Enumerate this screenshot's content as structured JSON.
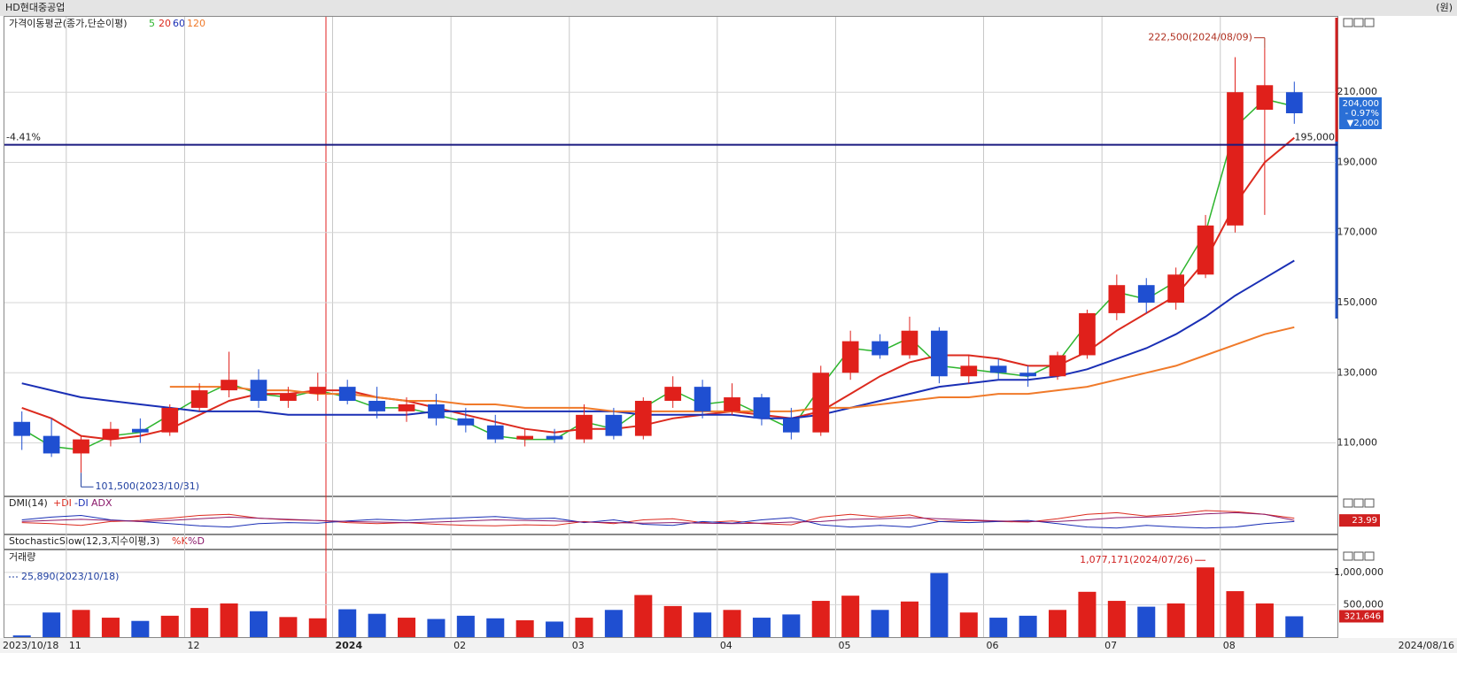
{
  "header": {
    "title": "HD현대중공업",
    "unit": "(원)"
  },
  "chart_data": [
    {
      "type": "candlestick",
      "title": "가격이동평균(종가,단순이평)",
      "categories": [
        "2023/10/18",
        null,
        "11",
        null,
        null,
        null,
        "12",
        null,
        null,
        null,
        null,
        "2024",
        null,
        null,
        null,
        "02",
        null,
        null,
        null,
        "03",
        null,
        null,
        null,
        null,
        "04",
        null,
        null,
        null,
        "05",
        null,
        null,
        null,
        null,
        "06",
        null,
        null,
        null,
        "07",
        null,
        null,
        null,
        "08",
        null,
        "2024/08/16"
      ],
      "open": [
        116000,
        112000,
        107000,
        111000,
        114000,
        113000,
        120000,
        125000,
        128000,
        122000,
        124000,
        126000,
        122000,
        119000,
        121000,
        117000,
        115000,
        111000,
        112000,
        111000,
        118000,
        112000,
        122000,
        126000,
        119000,
        123000,
        117000,
        113000,
        130000,
        139000,
        135000,
        142000,
        129000,
        132000,
        130000,
        129000,
        135000,
        147000,
        155000,
        150000,
        158000,
        172000,
        205000,
        210000
      ],
      "high": [
        119000,
        117000,
        112000,
        116000,
        117000,
        121000,
        127000,
        136000,
        131000,
        126000,
        130000,
        128000,
        126000,
        123000,
        124000,
        120000,
        118000,
        114000,
        114000,
        121000,
        120000,
        123000,
        129000,
        128000,
        127000,
        124000,
        120000,
        132000,
        142000,
        141000,
        146000,
        143000,
        135000,
        134000,
        132000,
        136000,
        148000,
        158000,
        157000,
        160000,
        175000,
        220000,
        222500,
        213000
      ],
      "low": [
        108000,
        106000,
        101500,
        109000,
        110000,
        112000,
        119000,
        123000,
        120000,
        120000,
        122000,
        121000,
        117000,
        116000,
        115000,
        113000,
        110000,
        109000,
        110000,
        110000,
        111000,
        111000,
        120000,
        117000,
        118000,
        115000,
        111000,
        112000,
        128000,
        134000,
        134000,
        127000,
        127000,
        128000,
        126000,
        128000,
        134000,
        145000,
        147000,
        148000,
        157000,
        170000,
        175000,
        201000
      ],
      "close": [
        112000,
        107000,
        111000,
        114000,
        113000,
        120000,
        125000,
        128000,
        122000,
        124000,
        126000,
        122000,
        119000,
        121000,
        117000,
        115000,
        111000,
        112000,
        111000,
        118000,
        112000,
        122000,
        126000,
        119000,
        123000,
        117000,
        113000,
        130000,
        139000,
        135000,
        142000,
        129000,
        132000,
        130000,
        129000,
        135000,
        147000,
        155000,
        150000,
        158000,
        172000,
        210000,
        212000,
        204000
      ],
      "up_color": "#e0201b",
      "down_color": "#1f4fd1",
      "series": [
        {
          "name": "5",
          "color": "#2db52d",
          "values": [
            114000,
            109000,
            108000,
            112000,
            113000,
            118000,
            123000,
            127000,
            124000,
            123000,
            125000,
            123000,
            120000,
            120000,
            118000,
            116000,
            112000,
            111000,
            111000,
            116000,
            114000,
            120000,
            125000,
            121000,
            122000,
            118000,
            114000,
            126000,
            137000,
            136000,
            140000,
            132000,
            131000,
            130000,
            129000,
            133000,
            144000,
            153000,
            151000,
            156000,
            170000,
            200000,
            208000,
            206000
          ]
        },
        {
          "name": "20",
          "color": "#dc2a1e",
          "values": [
            120000,
            117000,
            112000,
            111000,
            112000,
            114000,
            118000,
            122000,
            124000,
            124000,
            125000,
            125000,
            123000,
            122000,
            120000,
            118000,
            116000,
            114000,
            113000,
            114000,
            114000,
            115000,
            117000,
            118000,
            119000,
            118000,
            117000,
            119000,
            124000,
            129000,
            133000,
            135000,
            135000,
            134000,
            132000,
            132000,
            136000,
            142000,
            147000,
            152000,
            162000,
            178000,
            190000,
            197000
          ]
        },
        {
          "name": "60",
          "color": "#1a2fb5",
          "values": [
            127000,
            125000,
            123000,
            122000,
            121000,
            120000,
            119000,
            119000,
            119000,
            118000,
            118000,
            118000,
            118000,
            118000,
            119000,
            119000,
            119000,
            119000,
            119000,
            119000,
            119000,
            118000,
            118000,
            118000,
            118000,
            117000,
            117000,
            118000,
            120000,
            122000,
            124000,
            126000,
            127000,
            128000,
            128000,
            129000,
            131000,
            134000,
            137000,
            141000,
            146000,
            152000,
            157000,
            162000
          ]
        },
        {
          "name": "120",
          "color": "#f07a2a",
          "values": [
            null,
            null,
            null,
            null,
            null,
            126000,
            126000,
            126000,
            125000,
            125000,
            124000,
            124000,
            123000,
            122000,
            122000,
            121000,
            121000,
            120000,
            120000,
            120000,
            119000,
            119000,
            119000,
            119000,
            119000,
            119000,
            119000,
            120000,
            120000,
            121000,
            122000,
            123000,
            123000,
            124000,
            124000,
            125000,
            126000,
            128000,
            130000,
            132000,
            135000,
            138000,
            141000,
            143000
          ]
        }
      ],
      "ylim": [
        95000,
        231500
      ],
      "yticks": [
        {
          "value": 110000,
          "label": "110,000"
        },
        {
          "value": 130000,
          "label": "130,000"
        },
        {
          "value": 150000,
          "label": "150,000"
        },
        {
          "value": 170000,
          "label": "170,000"
        },
        {
          "value": 190000,
          "label": "190,000"
        },
        {
          "value": 210000,
          "label": "210,000"
        }
      ],
      "max_label": "222,500(2024/08/09)",
      "min_label": "101,500(2023/10/31)",
      "hline": {
        "value": 195000,
        "label": "195,000",
        "pct_label": "-4.41%"
      },
      "last": {
        "label": "204,000",
        "change_pct": "- 0.97%",
        "change": "▼2,000"
      }
    },
    {
      "type": "line",
      "title": "DMI(14)",
      "series": [
        {
          "name": "+DI",
          "color": "#dc2a1e",
          "values": [
            20,
            18,
            15,
            22,
            24,
            28,
            33,
            35,
            28,
            25,
            24,
            20,
            18,
            20,
            17,
            15,
            14,
            16,
            15,
            22,
            18,
            25,
            27,
            20,
            23,
            18,
            16,
            30,
            35,
            30,
            34,
            22,
            24,
            22,
            21,
            27,
            35,
            38,
            32,
            36,
            42,
            40,
            35,
            28
          ]
        },
        {
          "name": "-DI",
          "color": "#1a2fb5",
          "values": [
            25,
            30,
            33,
            25,
            22,
            18,
            14,
            12,
            18,
            20,
            19,
            23,
            26,
            24,
            27,
            29,
            31,
            27,
            28,
            20,
            25,
            17,
            15,
            22,
            19,
            25,
            29,
            16,
            12,
            15,
            12,
            22,
            20,
            22,
            24,
            18,
            12,
            10,
            15,
            12,
            10,
            12,
            18,
            22
          ]
        },
        {
          "name": "ADX",
          "color": "#8b1a6b",
          "values": [
            22,
            24,
            26,
            24,
            22,
            24,
            27,
            30,
            28,
            26,
            24,
            22,
            21,
            20,
            21,
            23,
            25,
            24,
            23,
            21,
            20,
            19,
            20,
            19,
            18,
            19,
            21,
            22,
            26,
            27,
            29,
            27,
            25,
            23,
            22,
            22,
            25,
            29,
            30,
            32,
            36,
            38,
            35,
            23.99
          ]
        }
      ],
      "ylim": [
        0,
        50
      ]
    },
    {
      "type": "legend-only",
      "title": "StochasticSlow(12,3,지수이평,3)",
      "legend": [
        "%K",
        "%D"
      ]
    },
    {
      "type": "bar",
      "title": "거래량",
      "values": [
        25890,
        380000,
        420000,
        300000,
        250000,
        330000,
        450000,
        520000,
        400000,
        310000,
        290000,
        430000,
        360000,
        300000,
        280000,
        330000,
        290000,
        260000,
        240000,
        300000,
        420000,
        650000,
        480000,
        380000,
        420000,
        300000,
        350000,
        560000,
        640000,
        420000,
        550000,
        990000,
        380000,
        300000,
        330000,
        420000,
        700000,
        560000,
        470000,
        520000,
        1077171,
        710000,
        520000,
        321646
      ],
      "last_label": "321,646",
      "max_label": "1,077,171(2024/07/26)",
      "min_label": "25,890(2023/10/18)",
      "ylim": [
        0,
        1340000
      ],
      "yticks": [
        {
          "value": 500000,
          "label": "500,000"
        },
        {
          "value": 1000000,
          "label": "1,000,000"
        }
      ]
    }
  ]
}
